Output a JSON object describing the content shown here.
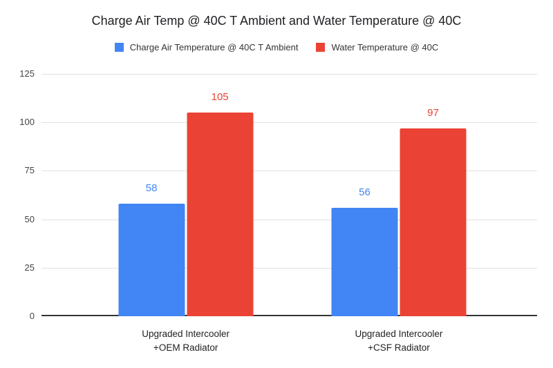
{
  "chart_data": {
    "type": "bar",
    "title": "Charge Air Temp @ 40C T Ambient and Water Temperature @ 40C",
    "categories": [
      "Upgraded Intercooler +OEM Radiator",
      "Upgraded Intercooler +CSF Radiator"
    ],
    "category_lines": [
      [
        "Upgraded Intercooler",
        "+OEM Radiator"
      ],
      [
        "Upgraded Intercooler",
        "+CSF Radiator"
      ]
    ],
    "series": [
      {
        "name": "Charge Air Temperature @ 40C T Ambient",
        "color": "#4285F4",
        "values": [
          58,
          56
        ]
      },
      {
        "name": "Water Temperature @ 40C",
        "color": "#EA4335",
        "values": [
          105,
          97
        ]
      }
    ],
    "xlabel": "",
    "ylabel": "",
    "ylim": [
      0,
      125
    ],
    "yticks": [
      0,
      25,
      50,
      75,
      100,
      125
    ],
    "grid": true,
    "legend_position": "top",
    "background_color": "#ffffff"
  }
}
